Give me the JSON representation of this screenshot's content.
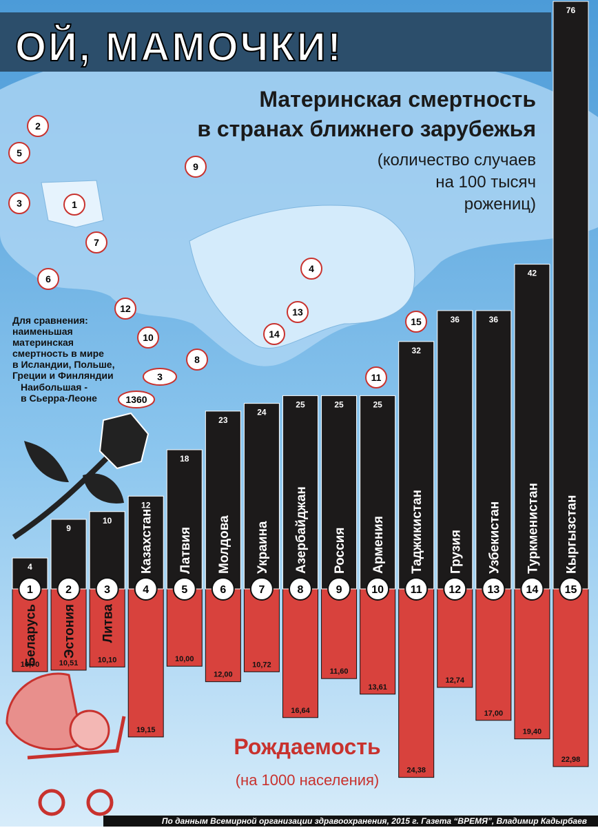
{
  "chart_data": {
    "type": "bar",
    "title": "ОЙ, МАМОЧКИ!",
    "subtitle": "в странах ближнего зарубежья",
    "unit_lines": [
      "(количество случаев",
      "на 100 тысяч",
      "рожениц)"
    ],
    "categories": [
      "Беларусь",
      "Эстония",
      "Литва",
      "Казахстан",
      "Латвия",
      "Молдова",
      "Украина",
      "Азербайджан",
      "Россия",
      "Армения",
      "Таджикистан",
      "Грузия",
      "Узбекистан",
      "Туркменистан",
      "Кыргызстан"
    ],
    "ranks": [
      1,
      2,
      3,
      4,
      5,
      6,
      7,
      8,
      9,
      10,
      11,
      12,
      13,
      14,
      15
    ],
    "ylim": [
      0,
      76
    ],
    "y2lim": [
      0,
      76
    ],
    "series": [
      {
        "name": "Материнская смертность",
        "color": "#1c1a1a",
        "values": [
          4,
          9,
          10,
          12,
          18,
          23,
          24,
          25,
          25,
          25,
          32,
          36,
          36,
          42,
          76
        ]
      },
      {
        "name": "Рождаемость",
        "unit": "(на 1000 населения)",
        "color": "#d8423d",
        "axis": "y2",
        "values": [
          10.7,
          10.51,
          10.1,
          19.15,
          10.0,
          12.0,
          10.72,
          16.64,
          11.6,
          13.61,
          24.38,
          12.74,
          17.0,
          19.4,
          22.98
        ],
        "value_labels": [
          "10,70",
          "10,51",
          "10,10",
          "19,15",
          "10,00",
          "12,00",
          "10,72",
          "16,64",
          "11,60",
          "13,61",
          "24,38",
          "12,74",
          "17,00",
          "19,40",
          "22,98"
        ]
      }
    ],
    "comparison": {
      "lines_min": [
        "Для сравнения:",
        "наименьшая",
        "материнская",
        "смертность в мире",
        "в Исландии, Польше,",
        "Греции и Финляндии"
      ],
      "min_value": 3,
      "lines_max": [
        "Наибольшая -",
        "в Сьерра-Леоне"
      ],
      "max_value": 1360
    },
    "source": "По данным Всемирной организации здравоохранения, 2015 г. Газета “ВРЕМЯ”, Владимир Кадырбаев"
  }
}
